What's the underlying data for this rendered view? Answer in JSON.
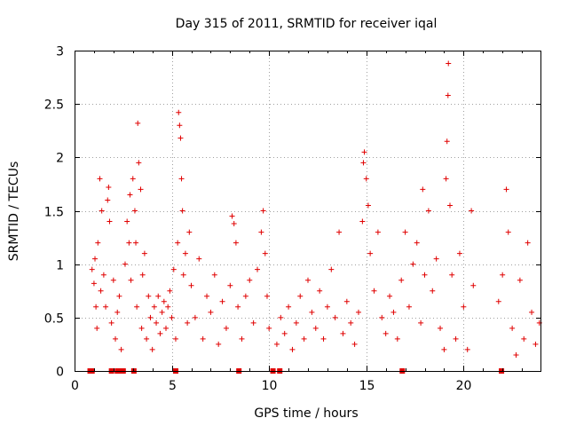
{
  "chart_data": {
    "type": "scatter",
    "title": "Day 315 of 2011, SRMTID for receiver iqal",
    "xlabel": "GPS time / hours",
    "ylabel": "SRMTID / TECUs",
    "xlim": [
      0,
      24
    ],
    "ylim": [
      0,
      3
    ],
    "xticks": [
      0,
      5,
      10,
      15,
      20
    ],
    "yticks": [
      0,
      0.5,
      1,
      1.5,
      2,
      2.5,
      3
    ],
    "xtick_labels": [
      "0",
      "5",
      "10",
      "15",
      "20"
    ],
    "ytick_labels": [
      "0",
      "0.5",
      "1",
      "1.5",
      "2",
      "2.5",
      "3"
    ],
    "grid": true,
    "marker": "plus",
    "color": "#e00000",
    "series": [
      {
        "name": "SRMTID",
        "points": [
          [
            0.9,
            0.95
          ],
          [
            1.0,
            0.82
          ],
          [
            1.05,
            1.05
          ],
          [
            1.1,
            0.6
          ],
          [
            1.15,
            0.4
          ],
          [
            1.2,
            1.2
          ],
          [
            1.3,
            1.8
          ],
          [
            1.35,
            0.75
          ],
          [
            1.4,
            1.5
          ],
          [
            1.5,
            0.9
          ],
          [
            1.6,
            0.6
          ],
          [
            1.7,
            1.6
          ],
          [
            1.75,
            1.72
          ],
          [
            1.8,
            1.4
          ],
          [
            1.9,
            0.45
          ],
          [
            2.0,
            0.85
          ],
          [
            2.1,
            0.3
          ],
          [
            2.2,
            0.55
          ],
          [
            2.3,
            0.7
          ],
          [
            2.4,
            0.2
          ],
          [
            2.6,
            1.0
          ],
          [
            2.7,
            1.4
          ],
          [
            2.8,
            1.2
          ],
          [
            2.85,
            1.65
          ],
          [
            2.9,
            0.85
          ],
          [
            3.0,
            1.8
          ],
          [
            3.1,
            1.5
          ],
          [
            3.15,
            1.2
          ],
          [
            3.2,
            0.6
          ],
          [
            3.25,
            2.32
          ],
          [
            3.3,
            1.95
          ],
          [
            3.4,
            1.7
          ],
          [
            3.45,
            0.4
          ],
          [
            3.5,
            0.9
          ],
          [
            3.6,
            1.1
          ],
          [
            3.7,
            0.3
          ],
          [
            3.8,
            0.7
          ],
          [
            3.9,
            0.5
          ],
          [
            4.0,
            0.2
          ],
          [
            4.1,
            0.6
          ],
          [
            4.2,
            0.45
          ],
          [
            4.3,
            0.7
          ],
          [
            4.4,
            0.35
          ],
          [
            4.5,
            0.55
          ],
          [
            4.6,
            0.65
          ],
          [
            4.7,
            0.4
          ],
          [
            4.8,
            0.6
          ],
          [
            4.9,
            0.75
          ],
          [
            5.0,
            0.5
          ],
          [
            5.1,
            0.95
          ],
          [
            5.2,
            0.3
          ],
          [
            5.3,
            1.2
          ],
          [
            5.35,
            2.42
          ],
          [
            5.4,
            2.3
          ],
          [
            5.45,
            2.18
          ],
          [
            5.5,
            1.8
          ],
          [
            5.55,
            1.5
          ],
          [
            5.6,
            0.9
          ],
          [
            5.7,
            1.1
          ],
          [
            5.8,
            0.45
          ],
          [
            5.9,
            1.3
          ],
          [
            6.0,
            0.8
          ],
          [
            6.2,
            0.5
          ],
          [
            6.4,
            1.05
          ],
          [
            6.6,
            0.3
          ],
          [
            6.8,
            0.7
          ],
          [
            7.0,
            0.55
          ],
          [
            7.2,
            0.9
          ],
          [
            7.4,
            0.25
          ],
          [
            7.6,
            0.65
          ],
          [
            7.8,
            0.4
          ],
          [
            8.0,
            0.8
          ],
          [
            8.1,
            1.45
          ],
          [
            8.2,
            1.38
          ],
          [
            8.3,
            1.2
          ],
          [
            8.4,
            0.6
          ],
          [
            8.6,
            0.3
          ],
          [
            8.8,
            0.7
          ],
          [
            9.0,
            0.85
          ],
          [
            9.2,
            0.45
          ],
          [
            9.4,
            0.95
          ],
          [
            9.6,
            1.3
          ],
          [
            9.7,
            1.5
          ],
          [
            9.8,
            1.1
          ],
          [
            9.9,
            0.7
          ],
          [
            10.0,
            0.4
          ],
          [
            10.4,
            0.25
          ],
          [
            10.6,
            0.5
          ],
          [
            10.8,
            0.35
          ],
          [
            11.0,
            0.6
          ],
          [
            11.2,
            0.2
          ],
          [
            11.4,
            0.45
          ],
          [
            11.6,
            0.7
          ],
          [
            11.8,
            0.3
          ],
          [
            12.0,
            0.85
          ],
          [
            12.2,
            0.55
          ],
          [
            12.4,
            0.4
          ],
          [
            12.6,
            0.75
          ],
          [
            12.8,
            0.3
          ],
          [
            13.0,
            0.6
          ],
          [
            13.2,
            0.95
          ],
          [
            13.4,
            0.5
          ],
          [
            13.6,
            1.3
          ],
          [
            13.8,
            0.35
          ],
          [
            14.0,
            0.65
          ],
          [
            14.2,
            0.45
          ],
          [
            14.4,
            0.25
          ],
          [
            14.6,
            0.55
          ],
          [
            14.8,
            1.4
          ],
          [
            14.85,
            1.95
          ],
          [
            14.9,
            2.05
          ],
          [
            15.0,
            1.8
          ],
          [
            15.1,
            1.55
          ],
          [
            15.2,
            1.1
          ],
          [
            15.4,
            0.75
          ],
          [
            15.6,
            1.3
          ],
          [
            15.8,
            0.5
          ],
          [
            16.0,
            0.35
          ],
          [
            16.2,
            0.7
          ],
          [
            16.4,
            0.55
          ],
          [
            16.6,
            0.3
          ],
          [
            16.8,
            0.85
          ],
          [
            17.0,
            1.3
          ],
          [
            17.2,
            0.6
          ],
          [
            17.4,
            1.0
          ],
          [
            17.6,
            1.2
          ],
          [
            17.8,
            0.45
          ],
          [
            17.9,
            1.7
          ],
          [
            18.0,
            0.9
          ],
          [
            18.2,
            1.5
          ],
          [
            18.4,
            0.75
          ],
          [
            18.6,
            1.05
          ],
          [
            18.8,
            0.4
          ],
          [
            19.0,
            0.2
          ],
          [
            19.1,
            1.8
          ],
          [
            19.15,
            2.15
          ],
          [
            19.2,
            2.58
          ],
          [
            19.22,
            2.88
          ],
          [
            19.3,
            1.55
          ],
          [
            19.4,
            0.9
          ],
          [
            19.6,
            0.3
          ],
          [
            19.8,
            1.1
          ],
          [
            20.0,
            0.6
          ],
          [
            20.2,
            0.2
          ],
          [
            20.4,
            1.5
          ],
          [
            20.5,
            0.8
          ],
          [
            21.8,
            0.65
          ],
          [
            22.0,
            0.9
          ],
          [
            22.2,
            1.7
          ],
          [
            22.3,
            1.3
          ],
          [
            22.5,
            0.4
          ],
          [
            22.7,
            0.15
          ],
          [
            22.9,
            0.85
          ],
          [
            23.1,
            0.3
          ],
          [
            23.3,
            1.2
          ],
          [
            23.5,
            0.55
          ],
          [
            23.7,
            0.25
          ],
          [
            23.9,
            0.45
          ]
        ]
      }
    ],
    "baseline_markers": [
      0.8,
      0.9,
      1.9,
      2.2,
      2.3,
      2.5,
      3.05,
      5.2,
      8.45,
      10.2,
      10.55,
      16.85,
      21.95
    ]
  }
}
